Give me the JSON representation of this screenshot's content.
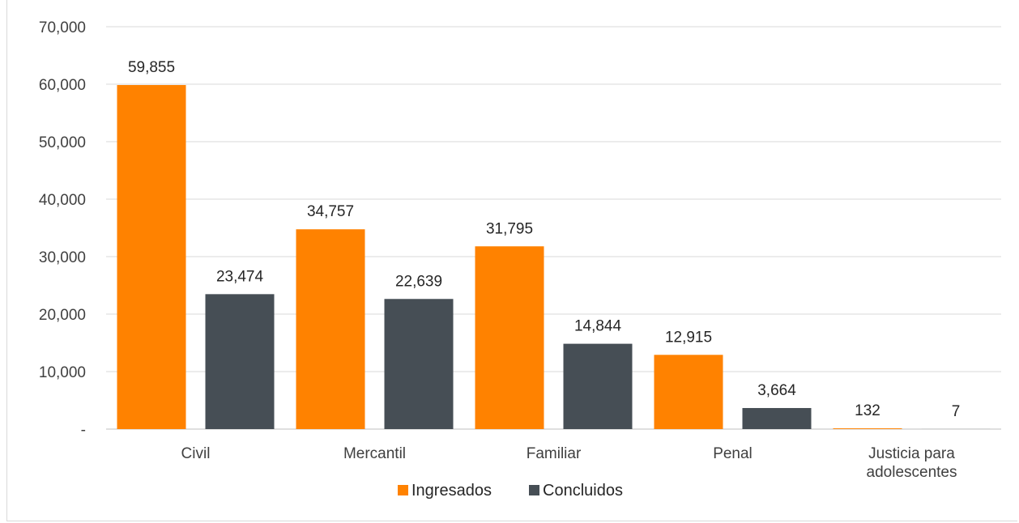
{
  "chart_data": {
    "type": "bar",
    "categories": [
      "Civil",
      "Mercantil",
      "Familiar",
      "Penal",
      "Justicia para adolescentes"
    ],
    "series": [
      {
        "name": "Ingresados",
        "values": [
          59855,
          34757,
          31795,
          12915,
          132
        ],
        "color": "#FF8200"
      },
      {
        "name": "Concluidos",
        "values": [
          23474,
          22639,
          14844,
          3664,
          7
        ],
        "color": "#464E55"
      }
    ],
    "data_labels": [
      [
        "59,855",
        "34,757",
        "31,795",
        "12,915",
        "132"
      ],
      [
        "23,474",
        "22,639",
        "14,844",
        "3,664",
        "7"
      ]
    ],
    "y_ticks": [
      "-",
      "10,000",
      "20,000",
      "30,000",
      "40,000",
      "50,000",
      "60,000",
      "70,000"
    ],
    "ylim": [
      0,
      70000
    ],
    "grid": true,
    "legend_position": "bottom",
    "title": "",
    "xlabel": "",
    "ylabel": ""
  }
}
